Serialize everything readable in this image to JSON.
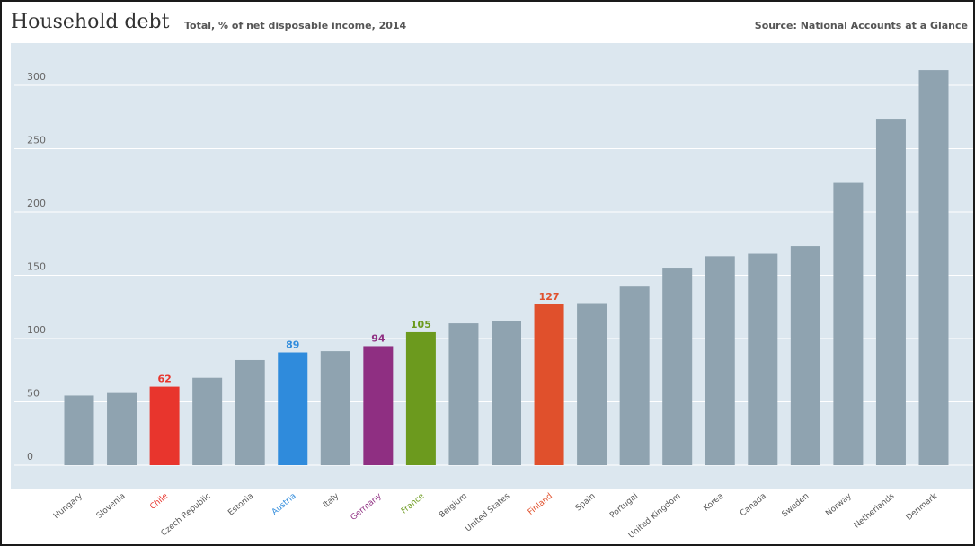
{
  "header": {
    "title": "Household debt",
    "subtitle": "Total, % of net disposable income, 2014",
    "source": "Source: National Accounts at a Glance"
  },
  "chart_data": {
    "type": "bar",
    "title": "Household debt",
    "subtitle": "Total, % of net disposable income, 2014",
    "xlabel": "",
    "ylabel": "",
    "ylim": [
      0,
      330
    ],
    "yticks": [
      0,
      50,
      100,
      150,
      200,
      250,
      300
    ],
    "grid": true,
    "categories": [
      "Hungary",
      "Slovenia",
      "Chile",
      "Czech Republic",
      "Estonia",
      "Austria",
      "Italy",
      "Germany",
      "France",
      "Belgium",
      "United States",
      "Finland",
      "Spain",
      "Portugal",
      "United Kingdom",
      "Korea",
      "Canada",
      "Sweden",
      "Norway",
      "Netherlands",
      "Denmark"
    ],
    "values": [
      55,
      57,
      62,
      69,
      83,
      89,
      90,
      94,
      105,
      112,
      114,
      127,
      128,
      141,
      156,
      165,
      167,
      173,
      223,
      273,
      312
    ],
    "data_labels": [
      {
        "category": "Chile",
        "label": "62"
      },
      {
        "category": "Austria",
        "label": "89"
      },
      {
        "category": "Germany",
        "label": "94"
      },
      {
        "category": "France",
        "label": "105"
      },
      {
        "category": "Finland",
        "label": "127"
      }
    ],
    "colors": {
      "default_bar": "#8fa3b0",
      "plot_background": "#dce7ef",
      "gridline": "#ffffff",
      "axis_text": "#666666",
      "Chile": "#e8352d",
      "Austria": "#2f8bdc",
      "Germany": "#8f2f82",
      "France": "#6c9a1e",
      "Finland": "#e0502c"
    }
  }
}
